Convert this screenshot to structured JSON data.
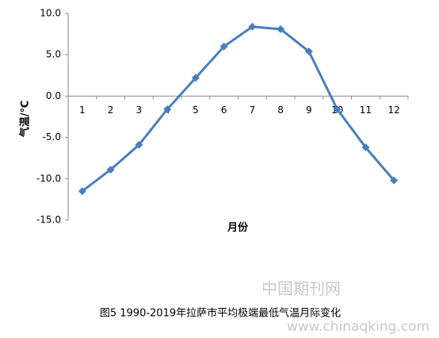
{
  "chart_data": {
    "type": "line",
    "categories": [
      "1",
      "2",
      "3",
      "4",
      "5",
      "6",
      "7",
      "8",
      "9",
      "10",
      "11",
      "12"
    ],
    "series": [
      {
        "name": "平均极端最低气温",
        "color": "#4a7ebb",
        "values": [
          -11.5,
          -8.9,
          -5.9,
          -1.6,
          2.2,
          6.0,
          8.4,
          8.1,
          5.4,
          -1.6,
          -6.2,
          -10.2
        ]
      }
    ],
    "ylim": [
      -15,
      10
    ],
    "yticks": [
      {
        "value": 10,
        "label": "10.0"
      },
      {
        "value": 5,
        "label": "5.0"
      },
      {
        "value": 0,
        "label": "0.0"
      },
      {
        "value": -5,
        "label": "-5.0"
      },
      {
        "value": -10,
        "label": "-10.0"
      },
      {
        "value": -15,
        "label": "-15.0"
      }
    ],
    "y_label": "气温/℃",
    "x_label": "月份",
    "caption": "图5 1990-2019年拉萨市平均极端最低气温月际变化",
    "grid": false
  },
  "watermark": {
    "site": "中国期刊网",
    "url": "www.chinaqking.com"
  }
}
